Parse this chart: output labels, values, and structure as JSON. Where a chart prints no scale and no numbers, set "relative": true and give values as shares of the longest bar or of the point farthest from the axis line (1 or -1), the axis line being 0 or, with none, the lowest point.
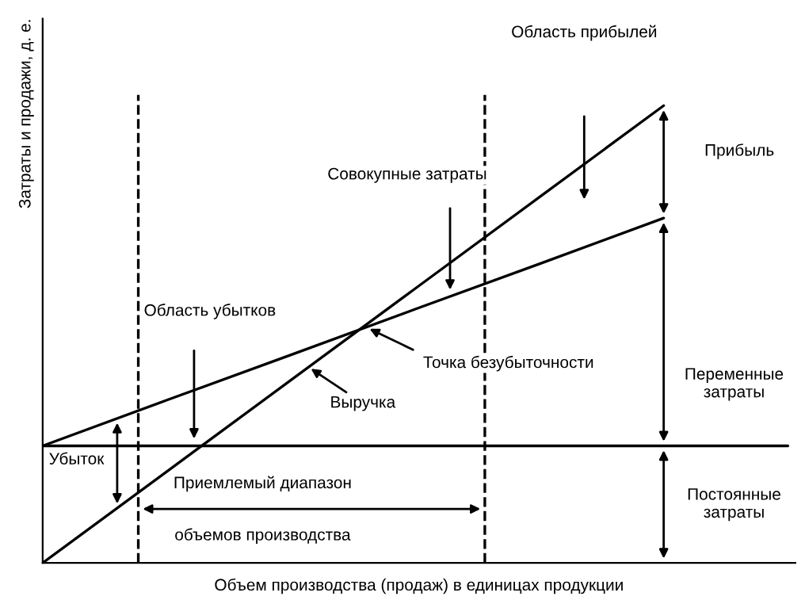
{
  "chart_data": {
    "type": "line",
    "relative": true,
    "legend": false,
    "marker": "none",
    "line_style": "solid",
    "xlabel": "Объем производства (продаж) в единицах продукции",
    "ylabel": "Затраты и продажи, д. е.",
    "categories": [
      null,
      null,
      null,
      null,
      null,
      null,
      null
    ],
    "series": [
      {
        "color": "#000000",
        "values": [
          0,
          0.2,
          0.4,
          0.6,
          0.8,
          1,
          null
        ]
      },
      {
        "color": "#000000",
        "values": [
          0.256,
          0.356,
          0.455,
          0.555,
          0.654,
          0.754,
          null
        ]
      },
      {
        "color": "#000000",
        "values": [
          0.256,
          0.256,
          0.256,
          0.256,
          0.256,
          0.256,
          0.256
        ]
      }
    ],
    "annotations": [
      "Область прибылей",
      "Совокупные затраты",
      "Область убытков",
      "Точка безубыточности",
      "Выручка",
      "Прибыль",
      "Переменные\nзатраты",
      "Постоянные\nзатраты",
      "Убыток",
      "Приемлемый диапазон",
      "объемов производства"
    ]
  }
}
